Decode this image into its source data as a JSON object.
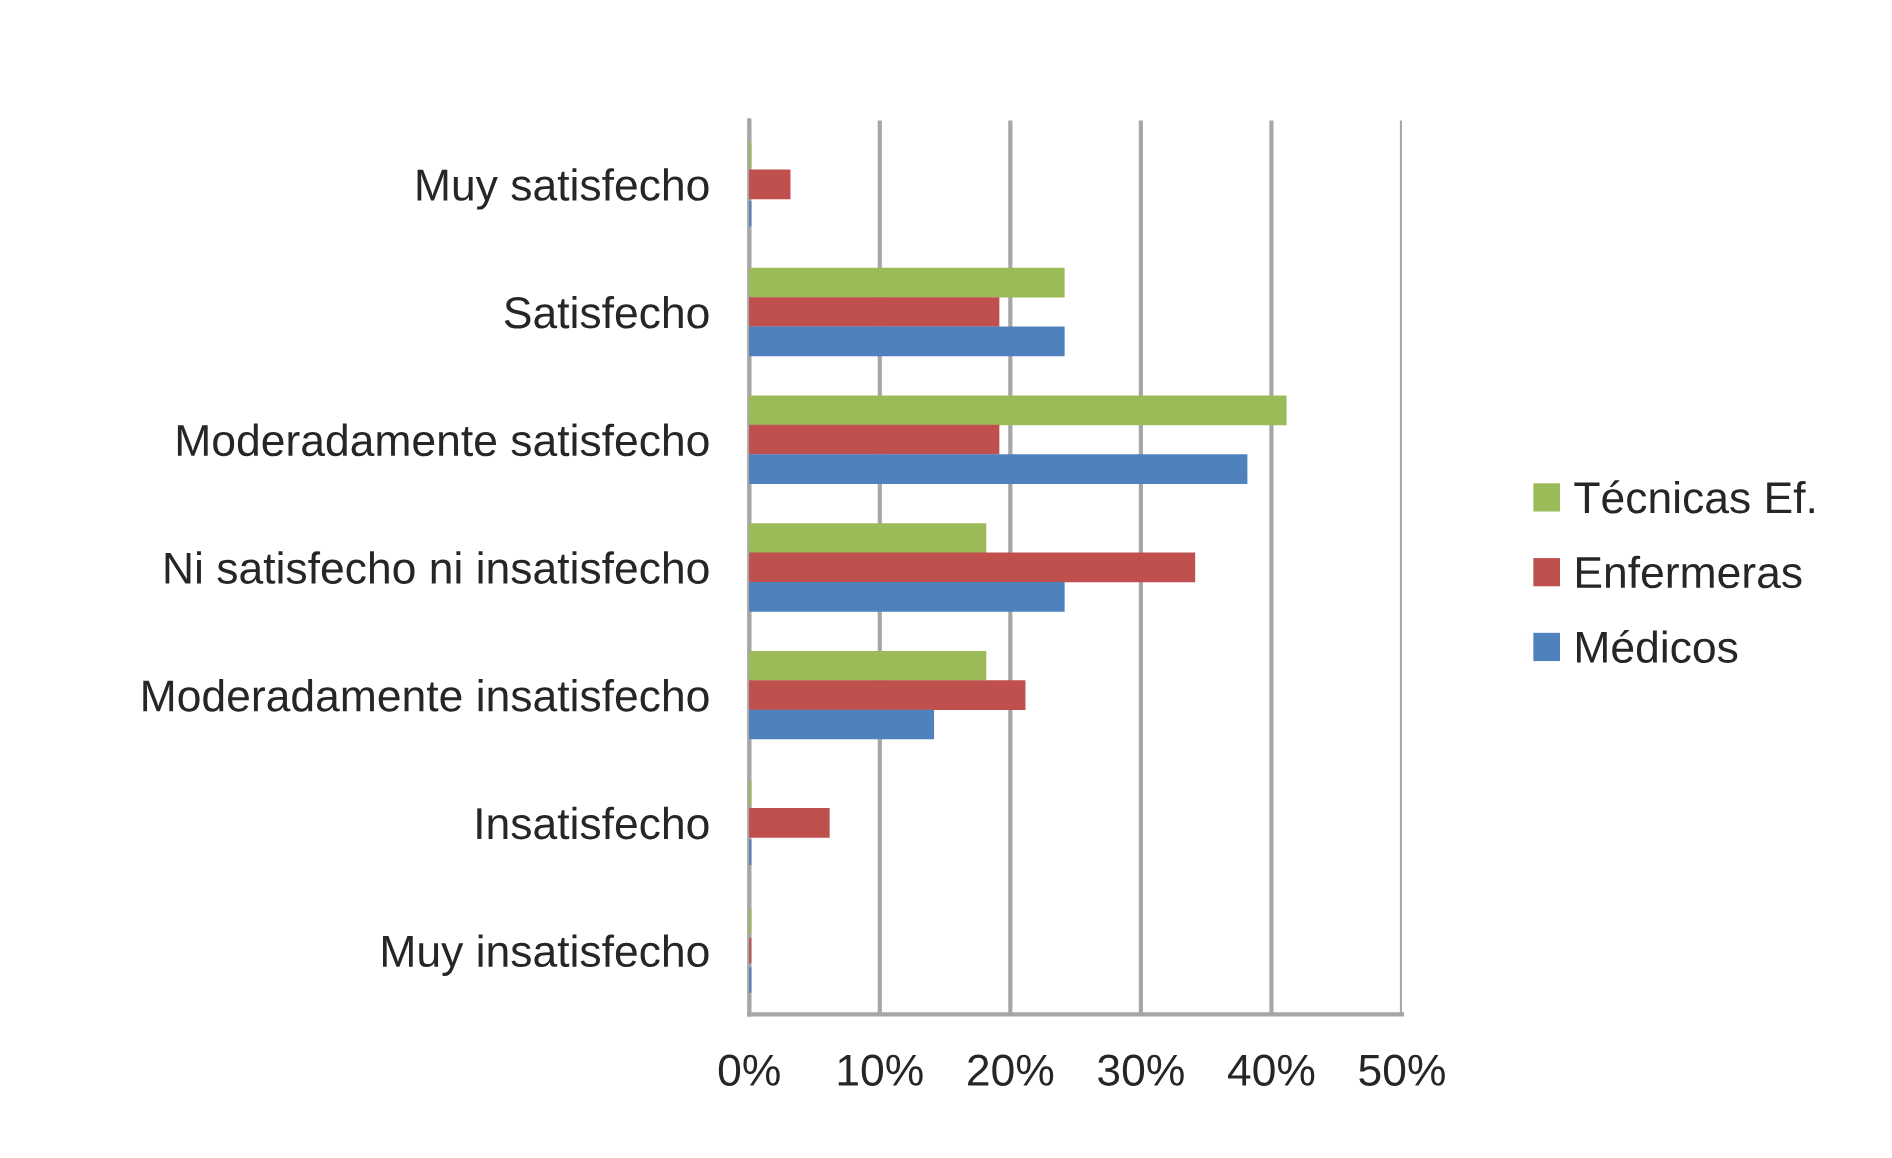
{
  "chart_data": {
    "type": "bar",
    "orientation": "horizontal",
    "categories": [
      "Muy satisfecho",
      "Satisfecho",
      "Moderadamente satisfecho",
      "Ni satisfecho ni insatisfecho",
      "Moderadamente insatisfecho",
      "Insatisfecho",
      "Muy insatisfecho"
    ],
    "series": [
      {
        "name": "Técnicas Ef.",
        "color": "#9bbb59",
        "values": [
          0,
          24,
          41,
          18,
          18,
          0,
          0
        ]
      },
      {
        "name": "Enfermeras",
        "color": "#c0504d",
        "values": [
          3,
          19,
          19,
          34,
          21,
          6,
          0
        ]
      },
      {
        "name": "Médicos",
        "color": "#4f81bd",
        "values": [
          0,
          24,
          38,
          24,
          14,
          0,
          0
        ]
      }
    ],
    "xlim": [
      0,
      50
    ],
    "xticks": [
      {
        "value": 0,
        "label": "0%"
      },
      {
        "value": 10,
        "label": "10%"
      },
      {
        "value": 20,
        "label": "20%"
      },
      {
        "value": 30,
        "label": "30%"
      },
      {
        "value": 40,
        "label": "40%"
      },
      {
        "value": 50,
        "label": "50%"
      }
    ],
    "grid": "x",
    "legend": "right"
  }
}
